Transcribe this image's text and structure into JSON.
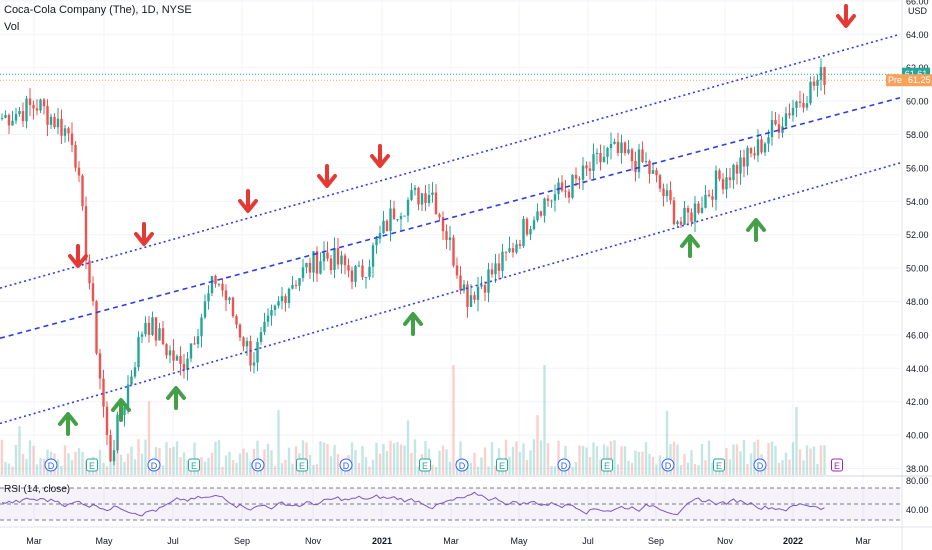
{
  "header": {
    "title": "Coca-Cola Company (The), 1D, NYSE",
    "volume_label": "Vol",
    "currency": "USD"
  },
  "rsi": {
    "label": "RSI (14, close)",
    "ticks": [
      "60.00",
      "40.00"
    ],
    "top_tick": "80.00"
  },
  "price_tags": {
    "last": "61.61",
    "pre_label": "Pre",
    "pre_value": "61.25",
    "last_color": "#26a69a",
    "pre_color": "#f7a15a"
  },
  "colors": {
    "up": "#26a69a",
    "down": "#ef5350",
    "channel": "#2f3ce8",
    "arrow_up": "#43a047",
    "arrow_down": "#e53935",
    "rsi": "#7e57c2"
  },
  "chart_data": {
    "type": "candlestick",
    "title": "Coca-Cola Company (The), 1D, NYSE",
    "ylabel": "USD",
    "ylim": [
      37.2,
      66.3
    ],
    "y_ticks": [
      "66.00",
      "64.00",
      "62.00",
      "60.00",
      "58.00",
      "56.00",
      "54.00",
      "52.00",
      "50.00",
      "48.00",
      "46.00",
      "44.00",
      "42.00",
      "40.00",
      "38.00"
    ],
    "x_ticks": [
      "Mar",
      "May",
      "Jul",
      "Sep",
      "Nov",
      "2021",
      "Mar",
      "May",
      "Jul",
      "Sep",
      "Nov",
      "2022",
      "Mar"
    ],
    "approx_close_path": [
      [
        "2020-01",
        59.0
      ],
      [
        "2020-02",
        59.8
      ],
      [
        "2020-03-start",
        57.8
      ],
      [
        "2020-03-crash",
        38.5
      ],
      [
        "2020-04",
        47.0
      ],
      [
        "2020-05",
        44.0
      ],
      [
        "2020-06",
        49.5
      ],
      [
        "2020-07",
        44.5
      ],
      [
        "2020-08",
        49.0
      ],
      [
        "2020-09",
        50.8
      ],
      [
        "2020-10",
        49.5
      ],
      [
        "2020-11",
        53.6
      ],
      [
        "2020-12",
        54.8
      ],
      [
        "2021-01",
        48.3
      ],
      [
        "2021-03",
        50.3
      ],
      [
        "2021-04",
        53.8
      ],
      [
        "2021-06",
        55.0
      ],
      [
        "2021-07",
        57.0
      ],
      [
        "2021-08",
        56.2
      ],
      [
        "2021-09",
        52.6
      ],
      [
        "2021-10",
        55.2
      ],
      [
        "2021-11",
        56.8
      ],
      [
        "2021-12",
        59.5
      ],
      [
        "2022-02",
        61.6
      ]
    ],
    "channel_lines": [
      {
        "name": "upper",
        "style": "dotted",
        "from": [
          "2020-01",
          48.8
        ],
        "to": [
          "2022-04",
          64.0
        ]
      },
      {
        "name": "middle",
        "style": "dashed",
        "from": [
          "2020-01",
          45.8
        ],
        "to": [
          "2022-04",
          60.2
        ]
      },
      {
        "name": "lower",
        "style": "dotted",
        "from": [
          "2020-01",
          40.7
        ],
        "to": [
          "2022-04",
          56.3
        ]
      }
    ],
    "markers": {
      "down_arrows": [
        "2020-04",
        "2020-06",
        "2020-09",
        "2020-11",
        "2020-12",
        "2022-03"
      ],
      "up_arrows": [
        "2020-03",
        "2020-05",
        "2020-07",
        "2021-01",
        "2021-09",
        "2021-11"
      ],
      "event_badges": [
        "D",
        "E",
        "D",
        "E",
        "D",
        "E",
        "D",
        "E",
        "D",
        "E",
        "D",
        "E",
        "D",
        "E",
        "D",
        "E"
      ]
    },
    "grid": true,
    "legend": "none"
  }
}
